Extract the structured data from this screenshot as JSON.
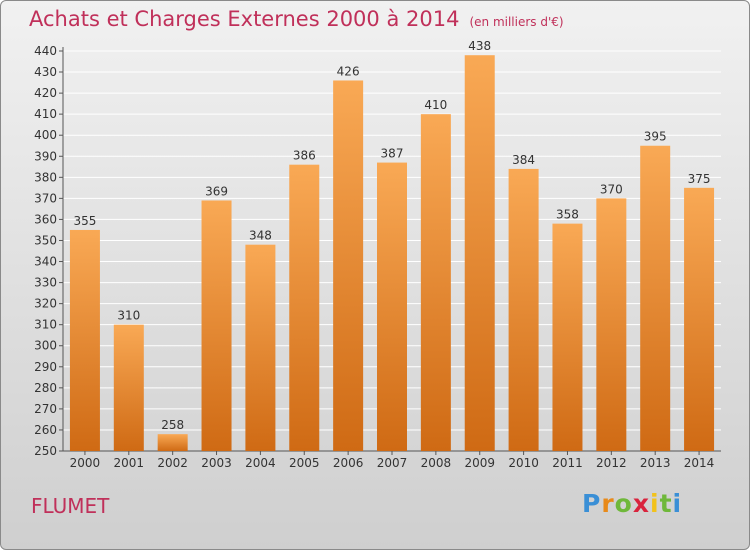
{
  "header": {
    "title": "Achats et Charges Externes 2000 à 2014",
    "subtitle": "(en milliers d'€)"
  },
  "commune": "FLUMET",
  "logo": {
    "letters": [
      "P",
      "r",
      "o",
      "x",
      "i",
      "t",
      "i"
    ],
    "colors": [
      "#3a8fd6",
      "#e88a1a",
      "#6fb83a",
      "#d9243d",
      "#f2c21b",
      "#6fb83a",
      "#3a8fd6"
    ]
  },
  "colors": {
    "bar_top": "#f9a955",
    "bar_bottom": "#cf6a14",
    "grid": "#ffffff"
  },
  "chart_data": {
    "type": "bar",
    "title": "Achats et Charges Externes 2000 à 2014",
    "subtitle": "(en milliers d'€)",
    "categories": [
      "2000",
      "2001",
      "2002",
      "2003",
      "2004",
      "2005",
      "2006",
      "2007",
      "2008",
      "2009",
      "2010",
      "2011",
      "2012",
      "2013",
      "2014"
    ],
    "values": [
      355,
      310,
      258,
      369,
      348,
      386,
      426,
      387,
      410,
      438,
      384,
      358,
      370,
      395,
      375
    ],
    "ylim": [
      250,
      440
    ],
    "yticks": [
      250,
      260,
      270,
      280,
      290,
      300,
      310,
      320,
      330,
      340,
      350,
      360,
      370,
      380,
      390,
      400,
      410,
      420,
      430,
      440
    ],
    "grid": true,
    "data_labels": true
  }
}
